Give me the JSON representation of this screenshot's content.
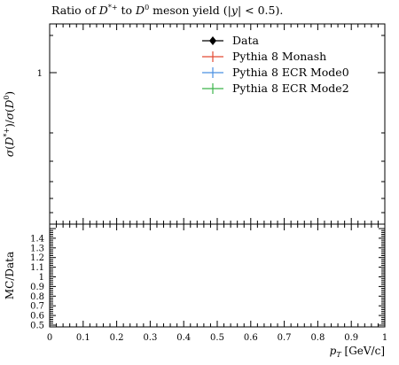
{
  "chart_data": {
    "type": "line",
    "title": "Ratio of D*+ to D0 meson yield (|y| < 0.5).",
    "top_panel": {
      "ylabel": "σ(D*+)/σ(D0)",
      "ytick_labels": [
        "1"
      ],
      "legend": {
        "placement": "top-right",
        "entries": [
          {
            "label": "Data",
            "color": "#000000",
            "marker": "diamond"
          },
          {
            "label": "Pythia 8 Monash",
            "color": "#e34a33",
            "marker": "errorbar"
          },
          {
            "label": "Pythia 8 ECR Mode0",
            "color": "#4a90e2",
            "marker": "errorbar"
          },
          {
            "label": "Pythia 8 ECR Mode2",
            "color": "#3cb44b",
            "marker": "errorbar"
          }
        ]
      },
      "series": []
    },
    "ratio_panel": {
      "ylabel": "MC/Data",
      "ylim": [
        0.5,
        1.5
      ],
      "ytick_labels": [
        "1.4",
        "1.3",
        "1.2",
        "1.1",
        "1",
        "0.9",
        "0.8",
        "0.7",
        "0.6",
        "0.5"
      ]
    },
    "xlabel": "p_T [GeV/c]",
    "xlim": [
      0,
      1
    ],
    "xtick_labels": [
      "0",
      "0.1",
      "0.2",
      "0.3",
      "0.4",
      "0.5",
      "0.6",
      "0.7",
      "0.8",
      "0.9",
      "1"
    ],
    "grid": false
  }
}
